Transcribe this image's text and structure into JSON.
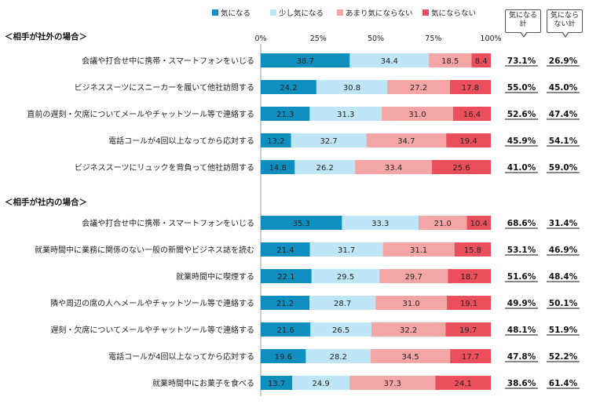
{
  "chart_data": {
    "type": "bar",
    "stacked": true,
    "orientation": "horizontal",
    "xlim": [
      0,
      100
    ],
    "ticks": [
      "0%",
      "25%",
      "50%",
      "75%",
      "100%"
    ],
    "legend": {
      "placement": "top",
      "items": [
        {
          "name": "気になる",
          "color": "#0f8fbf"
        },
        {
          "name": "少し気になる",
          "color": "#bfe6f7"
        },
        {
          "name": "あまり気にならない",
          "color": "#f4a6a6"
        },
        {
          "name": "気にならない",
          "color": "#ea4f5b"
        }
      ]
    },
    "total_headers": [
      "気になる計",
      "気にならない計"
    ],
    "groups": [
      {
        "title": "＜相手が社外の場合＞",
        "rows": [
          {
            "label": "会議や打合せ中に携帯・スマートフォンをいじる",
            "values": [
              38.7,
              34.4,
              18.5,
              8.4
            ],
            "totals": [
              "73.1%",
              "26.9%"
            ]
          },
          {
            "label": "ビジネススーツにスニーカーを履いて他社訪問する",
            "values": [
              24.2,
              30.8,
              27.2,
              17.8
            ],
            "totals": [
              "55.0%",
              "45.0%"
            ]
          },
          {
            "label": "直前の遅刻・欠席についてメールやチャットツール等で連絡する",
            "values": [
              21.3,
              31.3,
              31.0,
              16.4
            ],
            "totals": [
              "52.6%",
              "47.4%"
            ]
          },
          {
            "label": "電話コールが4回以上なってから応対する",
            "values": [
              13.2,
              32.7,
              34.7,
              19.4
            ],
            "totals": [
              "45.9%",
              "54.1%"
            ]
          },
          {
            "label": "ビジネススーツにリュックを背負って他社訪問する",
            "values": [
              14.8,
              26.2,
              33.4,
              25.6
            ],
            "totals": [
              "41.0%",
              "59.0%"
            ]
          }
        ]
      },
      {
        "title": "＜相手が社内の場合＞",
        "rows": [
          {
            "label": "会議や打合せ中に携帯・スマートフォンをいじる",
            "values": [
              35.3,
              33.3,
              21.0,
              10.4
            ],
            "totals": [
              "68.6%",
              "31.4%"
            ]
          },
          {
            "label": "就業時間中に業務に関係のない一般の新聞やビジネス誌を読む",
            "values": [
              21.4,
              31.7,
              31.1,
              15.8
            ],
            "totals": [
              "53.1%",
              "46.9%"
            ]
          },
          {
            "label": "就業時間中に喫煙する",
            "values": [
              22.1,
              29.5,
              29.7,
              18.7
            ],
            "totals": [
              "51.6%",
              "48.4%"
            ]
          },
          {
            "label": "隣や周辺の席の人へメールやチャットツール等で連絡する",
            "values": [
              21.2,
              28.7,
              31.0,
              19.1
            ],
            "totals": [
              "49.9%",
              "50.1%"
            ]
          },
          {
            "label": "遅刻・欠席についてメールやチャットツール等で連絡する",
            "values": [
              21.6,
              26.5,
              32.2,
              19.7
            ],
            "totals": [
              "48.1%",
              "51.9%"
            ]
          },
          {
            "label": "電話コールが4回以上なってから応対する",
            "values": [
              19.6,
              28.2,
              34.5,
              17.7
            ],
            "totals": [
              "47.8%",
              "52.2%"
            ]
          },
          {
            "label": "就業時間中にお菓子を食べる",
            "values": [
              13.7,
              24.9,
              37.3,
              24.1
            ],
            "totals": [
              "38.6%",
              "61.4%"
            ]
          }
        ]
      }
    ]
  }
}
